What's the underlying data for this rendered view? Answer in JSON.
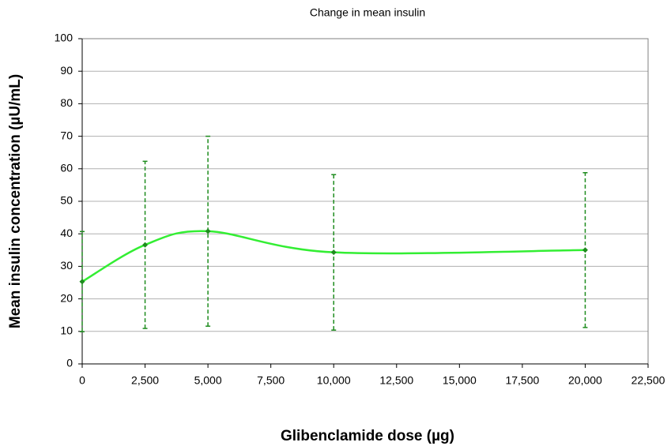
{
  "chart_data": {
    "type": "line",
    "title": "Change in mean insulin",
    "xlabel": "Glibenclamide dose (µg)",
    "ylabel": "Mean insulin concentration (µU/mL)",
    "x": [
      0,
      2500,
      5000,
      10000,
      20000
    ],
    "series": [
      {
        "name": "Mean insulin",
        "color": "#33ee33",
        "marker_color": "#1e8c1e",
        "error_color": "#1e8c1e",
        "values": [
          25.3,
          36.6,
          40.8,
          34.3,
          35.0
        ],
        "errors": [
          15.4,
          25.7,
          29.2,
          23.9,
          23.8
        ]
      }
    ],
    "xlim": [
      0,
      22500
    ],
    "xticks": [
      0,
      {
        "value": 2500,
        "label": "2,500"
      },
      {
        "value": 5000,
        "label": "5,000"
      },
      {
        "value": 7500,
        "label": "7,500"
      },
      {
        "value": 10000,
        "label": "10,000"
      },
      {
        "value": 12500,
        "label": "12,500"
      },
      {
        "value": 15000,
        "label": "15,000"
      },
      {
        "value": 17500,
        "label": "17,500"
      },
      {
        "value": 20000,
        "label": "20,000"
      },
      {
        "value": 22500,
        "label": "22,500"
      }
    ],
    "ylim": [
      0,
      100
    ],
    "yticks": [
      0,
      10,
      20,
      30,
      40,
      50,
      60,
      70,
      80,
      90,
      100
    ],
    "grid": true,
    "smooth": true
  }
}
